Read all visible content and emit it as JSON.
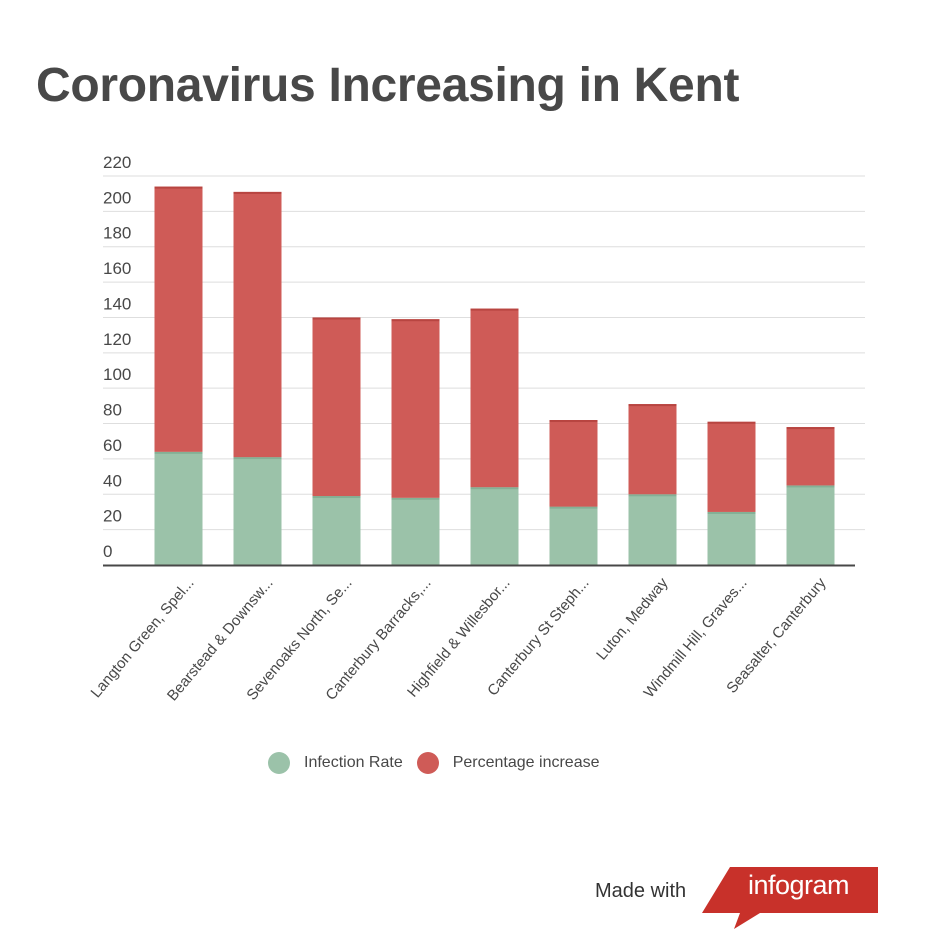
{
  "title": "Coronavirus Increasing in Kent",
  "legend": [
    {
      "label": "Infection Rate",
      "color": "#9bc2a9"
    },
    {
      "label": "Percentage increase",
      "color": "#cf5b57"
    }
  ],
  "footer": {
    "made_with": "Made with",
    "brand": "infogram",
    "brand_color": "#c8312a"
  },
  "chart_data": {
    "type": "bar",
    "stacked": true,
    "title": "Coronavirus Increasing in Kent",
    "categories": [
      "Langton Green, Spel...",
      "Bearstead & Downsw...",
      "Sevenoaks North, Se...",
      "Canterbury Barracks,...",
      "Highfield & Willesbor...",
      "Canterbury St Steph...",
      "Luton, Medway",
      "Windmill Hill, Graves...",
      "Seasalter, Canterbury"
    ],
    "series": [
      {
        "name": "Infection Rate",
        "color": "#9bc2a9",
        "values": [
          64,
          61,
          39,
          38,
          44,
          33,
          40,
          30,
          45
        ]
      },
      {
        "name": "Percentage increase",
        "color": "#cf5b57",
        "values": [
          150,
          150,
          101,
          101,
          101,
          49,
          51,
          51,
          33
        ]
      }
    ],
    "yticks": [
      0,
      20,
      40,
      60,
      80,
      100,
      120,
      140,
      160,
      180,
      200,
      220
    ],
    "ylim": [
      0,
      220
    ],
    "grid": true,
    "legend_position": "bottom-center"
  }
}
